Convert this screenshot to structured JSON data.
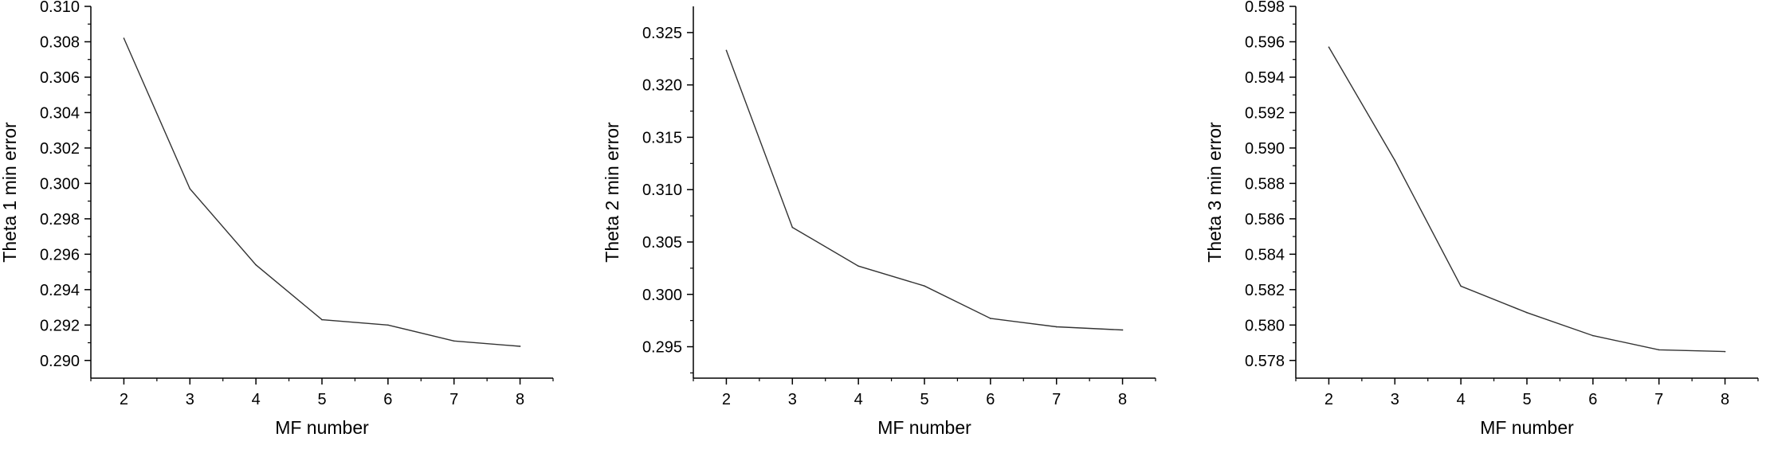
{
  "chart_data": [
    {
      "type": "line",
      "xlabel": "MF number",
      "ylabel": "Theta 1 min error",
      "x": [
        2,
        3,
        4,
        5,
        6,
        7,
        8
      ],
      "series": [
        {
          "values": [
            0.3082,
            0.2997,
            0.2954,
            0.2923,
            0.292,
            0.2911,
            0.2908
          ]
        }
      ],
      "xlim": [
        1.5,
        8.5
      ],
      "ylim": [
        0.289,
        0.31
      ],
      "xticks": [
        "2",
        "3",
        "4",
        "5",
        "6",
        "7",
        "8"
      ],
      "yticks": [
        "0.290",
        "0.292",
        "0.294",
        "0.296",
        "0.298",
        "0.300",
        "0.302",
        "0.304",
        "0.306",
        "0.308",
        "0.310"
      ],
      "line_color": "#333333",
      "grid": false
    },
    {
      "type": "line",
      "xlabel": "MF number",
      "ylabel": "Theta 2 min error",
      "x": [
        2,
        3,
        4,
        5,
        6,
        7,
        8
      ],
      "series": [
        {
          "values": [
            0.3233,
            0.3064,
            0.3027,
            0.3008,
            0.2977,
            0.2969,
            0.2966
          ]
        }
      ],
      "xlim": [
        1.5,
        8.5
      ],
      "ylim": [
        0.292,
        0.3275
      ],
      "xticks": [
        "2",
        "3",
        "4",
        "5",
        "6",
        "7",
        "8"
      ],
      "yticks": [
        "0.295",
        "0.300",
        "0.305",
        "0.310",
        "0.315",
        "0.320",
        "0.325"
      ],
      "line_color": "#333333",
      "grid": false
    },
    {
      "type": "line",
      "xlabel": "MF number",
      "ylabel": "Theta 3 min error",
      "x": [
        2,
        3,
        4,
        5,
        6,
        7,
        8
      ],
      "series": [
        {
          "values": [
            0.5957,
            0.5893,
            0.5822,
            0.5807,
            0.5794,
            0.5786,
            0.5785
          ]
        }
      ],
      "xlim": [
        1.5,
        8.5
      ],
      "ylim": [
        0.577,
        0.598
      ],
      "xticks": [
        "2",
        "3",
        "4",
        "5",
        "6",
        "7",
        "8"
      ],
      "yticks": [
        "0.578",
        "0.580",
        "0.582",
        "0.584",
        "0.586",
        "0.588",
        "0.590",
        "0.592",
        "0.594",
        "0.596",
        "0.598"
      ],
      "line_color": "#333333",
      "grid": false
    }
  ]
}
